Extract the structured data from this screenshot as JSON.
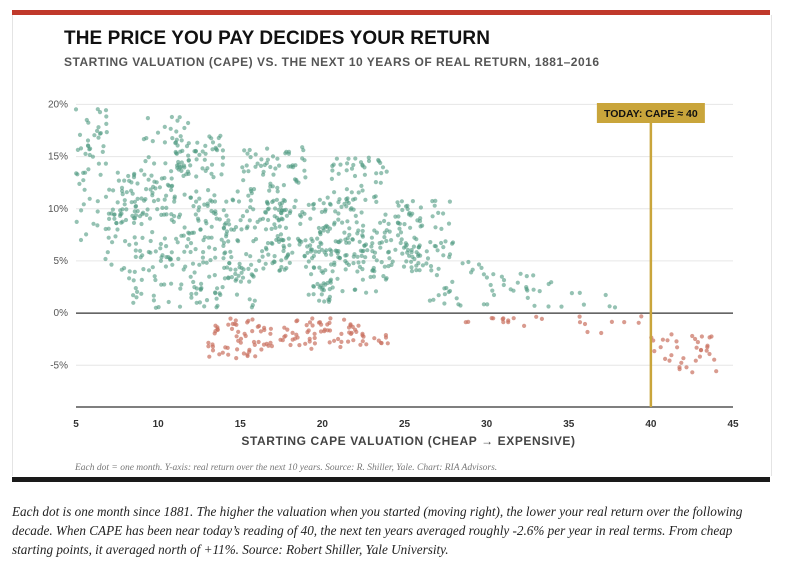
{
  "header": {
    "title": "THE PRICE YOU PAY DECIDES YOUR RETURN",
    "subtitle": "STARTING VALUATION (CAPE) VS. THE NEXT 10 YEARS OF REAL RETURN, 1881–2016"
  },
  "footer": {
    "source": "Each dot = one month. Y-axis: real return over the next 10 years. Source: R. Shiller, Yale. Chart: RIA Advisors.",
    "caption": "Each dot is one month since 1881. The higher the valuation when you started (moving right), the lower your real return over the following decade. When CAPE has been near today’s reading of 40, the next ten years averaged roughly -2.6% per year in real terms. From cheap starting points, it averaged north of +11%. Source: Robert Shiller, Yale University."
  },
  "colors": {
    "top_bar": "#c0392b",
    "bottom_bar": "#1a1a1a",
    "positive_dot": "#4f9a80",
    "negative_dot": "#c97060",
    "marker": "#c9a53b"
  },
  "chart_data": {
    "type": "scatter",
    "xlabel": "STARTING CAPE VALUATION (CHEAP → EXPENSIVE)",
    "ylabel": "",
    "xlim": [
      5,
      45
    ],
    "ylim": [
      -9,
      21
    ],
    "x_ticks": [
      5,
      10,
      15,
      20,
      25,
      30,
      35,
      40,
      45
    ],
    "x_tick_labels": [
      "5",
      "10",
      "15",
      "20",
      "25",
      "30",
      "35",
      "40",
      "45"
    ],
    "y_ticks": [
      20,
      15,
      10,
      5,
      0,
      -5
    ],
    "y_tick_labels": [
      "20%",
      "15%",
      "10%",
      "5%",
      "0%",
      "-5%"
    ],
    "grid": "horizontal",
    "marker": {
      "x": 40,
      "label": "TODAY: CAPE ≈ 40"
    },
    "clusters": [
      {
        "x": [
          5,
          7
        ],
        "y": [
          14,
          20
        ],
        "n": 30
      },
      {
        "x": [
          5,
          9
        ],
        "y": [
          7,
          14
        ],
        "n": 45
      },
      {
        "x": [
          6,
          10
        ],
        "y": [
          3,
          10
        ],
        "n": 30
      },
      {
        "x": [
          7,
          11
        ],
        "y": [
          9,
          13
        ],
        "n": 60
      },
      {
        "x": [
          9,
          12
        ],
        "y": [
          13,
          19
        ],
        "n": 40
      },
      {
        "x": [
          10,
          14
        ],
        "y": [
          5,
          12
        ],
        "n": 80
      },
      {
        "x": [
          11,
          14
        ],
        "y": [
          13,
          17
        ],
        "n": 45
      },
      {
        "x": [
          8,
          12
        ],
        "y": [
          0.5,
          6
        ],
        "n": 35
      },
      {
        "x": [
          12,
          16
        ],
        "y": [
          0.5,
          5
        ],
        "n": 55
      },
      {
        "x": [
          14,
          18
        ],
        "y": [
          4,
          12
        ],
        "n": 110
      },
      {
        "x": [
          15,
          19
        ],
        "y": [
          12,
          16
        ],
        "n": 50
      },
      {
        "x": [
          17,
          22
        ],
        "y": [
          4,
          11
        ],
        "n": 120
      },
      {
        "x": [
          19,
          24
        ],
        "y": [
          1,
          8
        ],
        "n": 90
      },
      {
        "x": [
          20,
          24
        ],
        "y": [
          10,
          15
        ],
        "n": 45
      },
      {
        "x": [
          22,
          26
        ],
        "y": [
          4,
          10
        ],
        "n": 60
      },
      {
        "x": [
          24,
          28
        ],
        "y": [
          4,
          7
        ],
        "n": 40
      },
      {
        "x": [
          24,
          28
        ],
        "y": [
          8,
          11
        ],
        "n": 25
      },
      {
        "x": [
          26,
          31
        ],
        "y": [
          0.5,
          5
        ],
        "n": 30
      },
      {
        "x": [
          31,
          34
        ],
        "y": [
          2,
          4
        ],
        "n": 15
      },
      {
        "x": [
          32,
          38
        ],
        "y": [
          0.5,
          2
        ],
        "n": 10
      },
      {
        "x": [
          13,
          16
        ],
        "y": [
          -4.5,
          -0.5
        ],
        "n": 45
      },
      {
        "x": [
          16,
          19
        ],
        "y": [
          -3.5,
          -0.5
        ],
        "n": 30
      },
      {
        "x": [
          19,
          24
        ],
        "y": [
          -3.5,
          -0.5
        ],
        "n": 55
      },
      {
        "x": [
          27,
          32
        ],
        "y": [
          -1,
          -0.3
        ],
        "n": 10
      },
      {
        "x": [
          32,
          40
        ],
        "y": [
          -2,
          -0.3
        ],
        "n": 12
      },
      {
        "x": [
          40,
          44
        ],
        "y": [
          -6,
          -2
        ],
        "n": 35
      }
    ]
  }
}
